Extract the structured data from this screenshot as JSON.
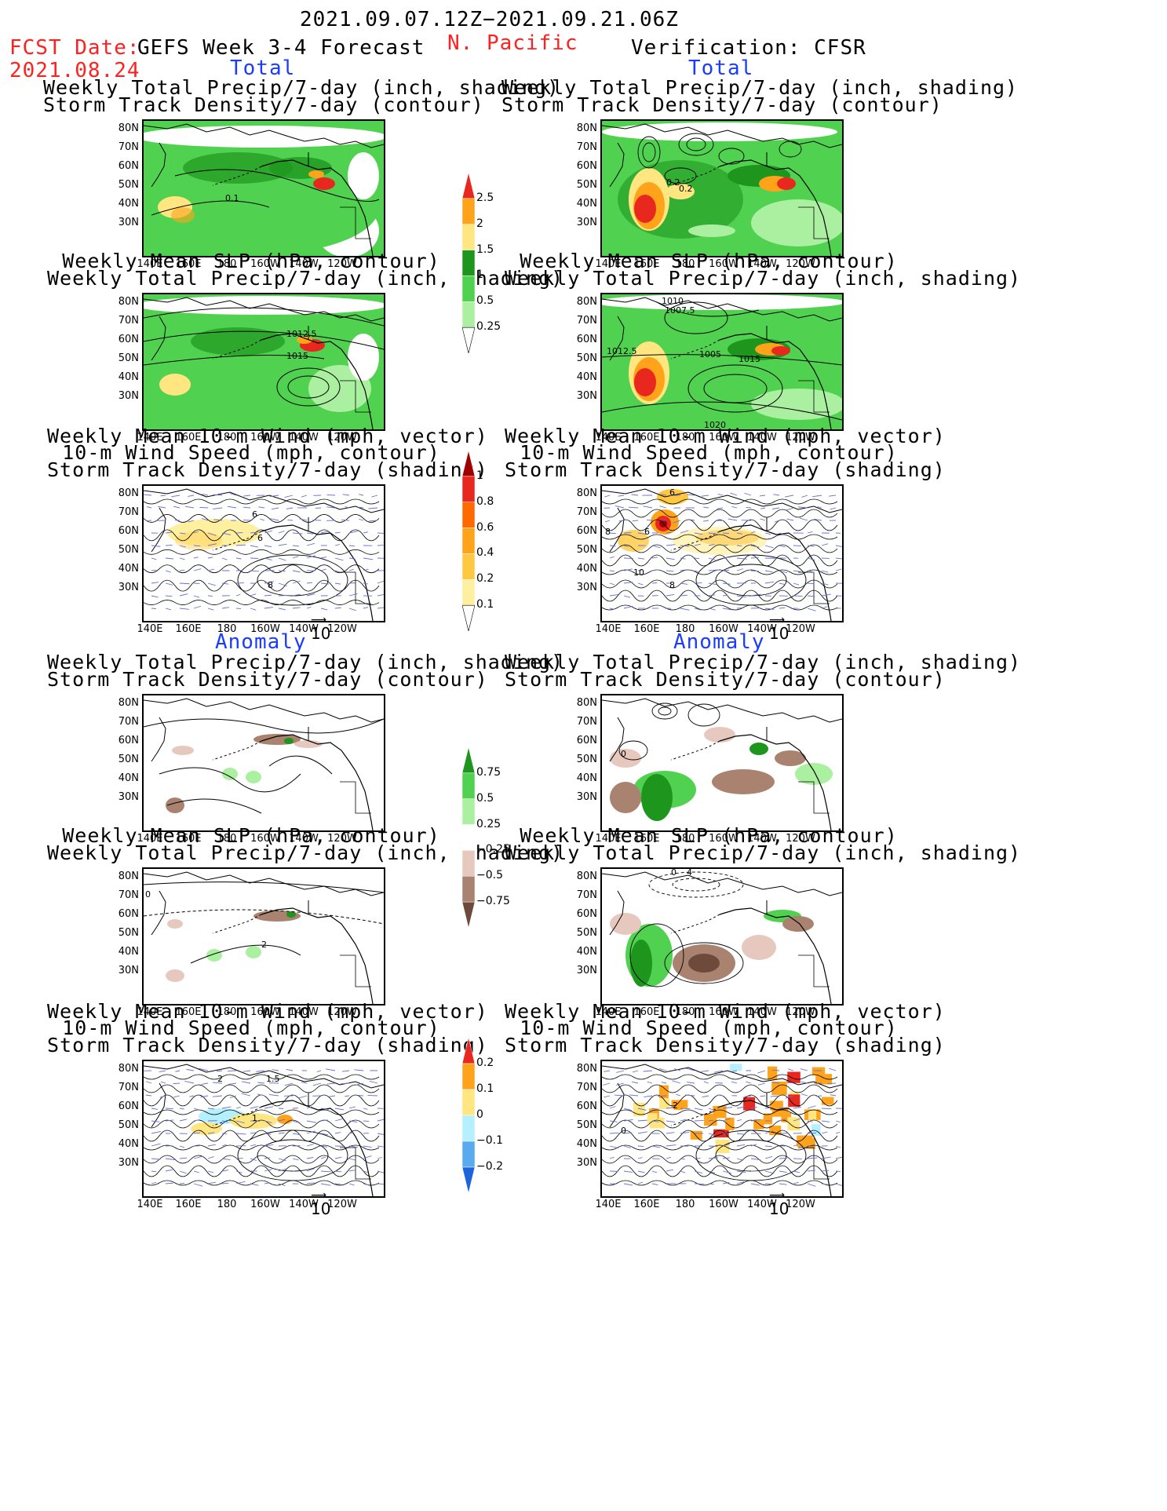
{
  "header": {
    "period": "2021.09.07.12Z−2021.09.21.06Z",
    "fcst_date_label": "FCST Date:",
    "fcst_date": "2021.08.24",
    "forecast_title": "GEFS Week 3-4 Forecast",
    "region": "N. Pacific",
    "verification": "Verification: CFSR"
  },
  "sections": {
    "total": "Total",
    "anomaly": "Anomaly"
  },
  "panel_titles": {
    "precip_track": [
      "Weekly Total Precip/7-day (inch, shading)",
      "Storm Track Density/7-day (contour)"
    ],
    "slp_precip": [
      "Weekly Mean SLP (hPa, contour)",
      "Weekly Total Precip/7-day (inch, shading)"
    ],
    "wind": [
      "Weekly Mean 10-m Wind (mph, vector)",
      "10-m Wind Speed (mph, contour)",
      "Storm Track Density/7-day (shading)"
    ]
  },
  "axes": {
    "lat": [
      "80N",
      "70N",
      "60N",
      "50N",
      "40N",
      "30N"
    ],
    "lon": [
      "140E",
      "160E",
      "180",
      "160W",
      "140W",
      "120W"
    ]
  },
  "vector_ref": "10",
  "contour_labels": {
    "fc_total_precip": [
      "0.1"
    ],
    "ob_total_precip": [
      "0.2",
      "0.2"
    ],
    "fc_total_slp": [
      "1012.5",
      "1015"
    ],
    "ob_total_slp": [
      "1010",
      "1007.5",
      "1012.5",
      "1005",
      "1015",
      "1020"
    ],
    "fc_total_wind": [
      "6",
      "6",
      "8"
    ],
    "ob_total_wind": [
      "6",
      "6",
      "8",
      "10",
      "8"
    ],
    "ob_anom_precip": [
      "0"
    ],
    "fc_anom_slp": [
      "0",
      "2"
    ],
    "ob_anom_slp": [
      "0",
      "4"
    ],
    "fc_anom_wind": [
      "2",
      "1.5",
      "1"
    ],
    "ob_anom_wind": [
      "2",
      "0"
    ]
  },
  "colorbars": {
    "total_precip": {
      "labels": [
        "2.5",
        "2",
        "1.5",
        "1",
        "0.5",
        "0.25"
      ],
      "colors": [
        "#e8281e",
        "#ffa31a",
        "#ffe680",
        "#1e961e",
        "#50d250",
        "#aaf0a0"
      ]
    },
    "track_density": {
      "labels": [
        "1",
        "0.8",
        "0.6",
        "0.4",
        "0.2",
        "0.1"
      ],
      "colors": [
        "#a00000",
        "#e8281e",
        "#ff6a00",
        "#ffa31a",
        "#ffc840",
        "#fff0a0"
      ]
    },
    "anom_precip": {
      "labels": [
        "0.75",
        "0.5",
        "0.25",
        "−0.25",
        "−0.5",
        "−0.75"
      ],
      "colors": [
        "#1e961e",
        "#50d250",
        "#aaf0a0",
        "#ffffff",
        "#e6c8be",
        "#aa8270",
        "#6e4a3c"
      ]
    },
    "anom_track": {
      "labels": [
        "0.2",
        "0.1",
        "0",
        "−0.1",
        "−0.2"
      ],
      "colors": [
        "#e8281e",
        "#ffa31a",
        "#ffe680",
        "#b4f0ff",
        "#5aaaf0",
        "#1e64dc"
      ]
    }
  }
}
